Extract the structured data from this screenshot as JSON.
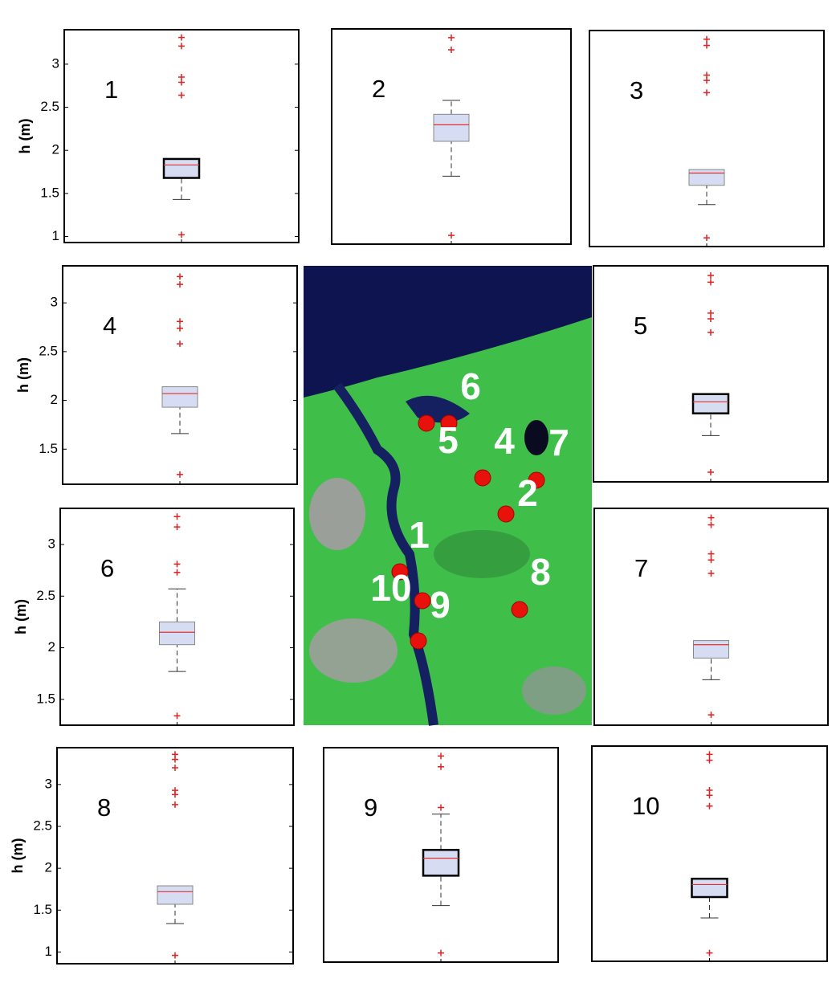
{
  "chart_data": [
    {
      "type": "box",
      "title": "1",
      "ylabel": "h (m)",
      "ylim": [
        0.93,
        3.4
      ],
      "yticks": [
        1,
        1.5,
        2,
        2.5,
        3
      ],
      "box_color": "#d6dcf2",
      "edge_color": "#000000",
      "median_color": "#e03030",
      "outlier_color": "#e02020",
      "whisker_low": 1.43,
      "q1": 1.68,
      "median": 1.83,
      "q3": 1.9,
      "outliers": [
        3.31,
        3.21,
        2.85,
        2.79,
        2.64,
        1.02
      ]
    },
    {
      "type": "box",
      "title": "2",
      "ylim": [
        0.93,
        3.4
      ],
      "box_color": "#d6dcf2",
      "edge_color": "#888888",
      "median_color": "#e03030",
      "outlier_color": "#e02020",
      "whisker_low": 1.71,
      "q1": 2.11,
      "median": 2.3,
      "q3": 2.42,
      "whisker_high": 2.58,
      "outliers": [
        3.3,
        3.16,
        1.03
      ]
    },
    {
      "type": "box",
      "title": "3",
      "ylim": [
        0.93,
        3.4
      ],
      "box_color": "#d6dcf2",
      "edge_color": "#888888",
      "median_color": "#e03030",
      "outlier_color": "#e02020",
      "whisker_low": 1.41,
      "q1": 1.63,
      "median": 1.77,
      "q3": 1.81,
      "outliers": [
        3.3,
        3.23,
        2.89,
        2.83,
        2.69,
        1.03
      ]
    },
    {
      "type": "box",
      "title": "4",
      "ylabel": "h (m)",
      "ylim": [
        1.14,
        3.38
      ],
      "yticks": [
        1.5,
        2,
        2.5,
        3
      ],
      "box_color": "#d6dcf2",
      "edge_color": "#888888",
      "median_color": "#e03030",
      "outlier_color": "#e02020",
      "whisker_low": 1.66,
      "q1": 1.93,
      "median": 2.07,
      "q3": 2.14,
      "outliers": [
        3.27,
        3.19,
        2.81,
        2.74,
        2.58,
        1.24
      ]
    },
    {
      "type": "box",
      "title": "5",
      "ylim": [
        1.14,
        3.38
      ],
      "box_color": "#d6dcf2",
      "edge_color": "#000000",
      "median_color": "#e03030",
      "outlier_color": "#e02020",
      "whisker_low": 1.62,
      "q1": 1.85,
      "median": 1.97,
      "q3": 2.05,
      "outliers": [
        3.28,
        3.21,
        2.89,
        2.83,
        2.69,
        1.24
      ]
    },
    {
      "type": "box",
      "title": "6",
      "ylabel": "h (m)",
      "ylim": [
        1.25,
        3.35
      ],
      "yticks": [
        1.5,
        2,
        2.5,
        3
      ],
      "box_color": "#d6dcf2",
      "edge_color": "#888888",
      "median_color": "#e03030",
      "outlier_color": "#e02020",
      "whisker_low": 1.77,
      "q1": 2.03,
      "median": 2.15,
      "q3": 2.25,
      "whisker_high": 2.57,
      "outliers": [
        3.27,
        3.17,
        2.81,
        2.73,
        1.34
      ]
    },
    {
      "type": "box",
      "title": "7",
      "ylim": [
        1.25,
        3.35
      ],
      "box_color": "#d6dcf2",
      "edge_color": "#888888",
      "median_color": "#e03030",
      "outlier_color": "#e02020",
      "whisker_low": 1.69,
      "q1": 1.9,
      "median": 2.03,
      "q3": 2.07,
      "outliers": [
        3.26,
        3.19,
        2.91,
        2.85,
        2.72,
        1.35
      ]
    },
    {
      "type": "box",
      "title": "8",
      "ylabel": "h (m)",
      "ylim": [
        0.86,
        3.44
      ],
      "yticks": [
        1,
        1.5,
        2,
        2.5,
        3
      ],
      "box_color": "#d6dcf2",
      "edge_color": "#888888",
      "median_color": "#e03030",
      "outlier_color": "#e02020",
      "whisker_low": 1.34,
      "q1": 1.57,
      "median": 1.72,
      "q3": 1.79,
      "outliers": [
        3.36,
        3.3,
        3.2,
        2.93,
        2.88,
        2.76,
        0.96
      ]
    },
    {
      "type": "box",
      "title": "9",
      "ylim": [
        0.86,
        3.44
      ],
      "box_color": "#d6dcf2",
      "edge_color": "#000000",
      "median_color": "#e03030",
      "outlier_color": "#e02020",
      "whisker_low": 1.54,
      "q1": 1.9,
      "median": 2.11,
      "q3": 2.21,
      "whisker_high": 2.64,
      "outliers": [
        3.34,
        3.21,
        2.72,
        0.97
      ]
    },
    {
      "type": "box",
      "title": "10",
      "ylim": [
        0.86,
        3.44
      ],
      "box_color": "#d6dcf2",
      "edge_color": "#000000",
      "median_color": "#e03030",
      "outlier_color": "#e02020",
      "whisker_low": 1.38,
      "q1": 1.63,
      "median": 1.78,
      "q3": 1.85,
      "outliers": [
        3.34,
        3.27,
        2.91,
        2.85,
        2.72,
        0.96
      ]
    }
  ],
  "map": {
    "labels": [
      "6",
      "5",
      "4",
      "7",
      "2",
      "1",
      "8",
      "10",
      "9"
    ]
  }
}
